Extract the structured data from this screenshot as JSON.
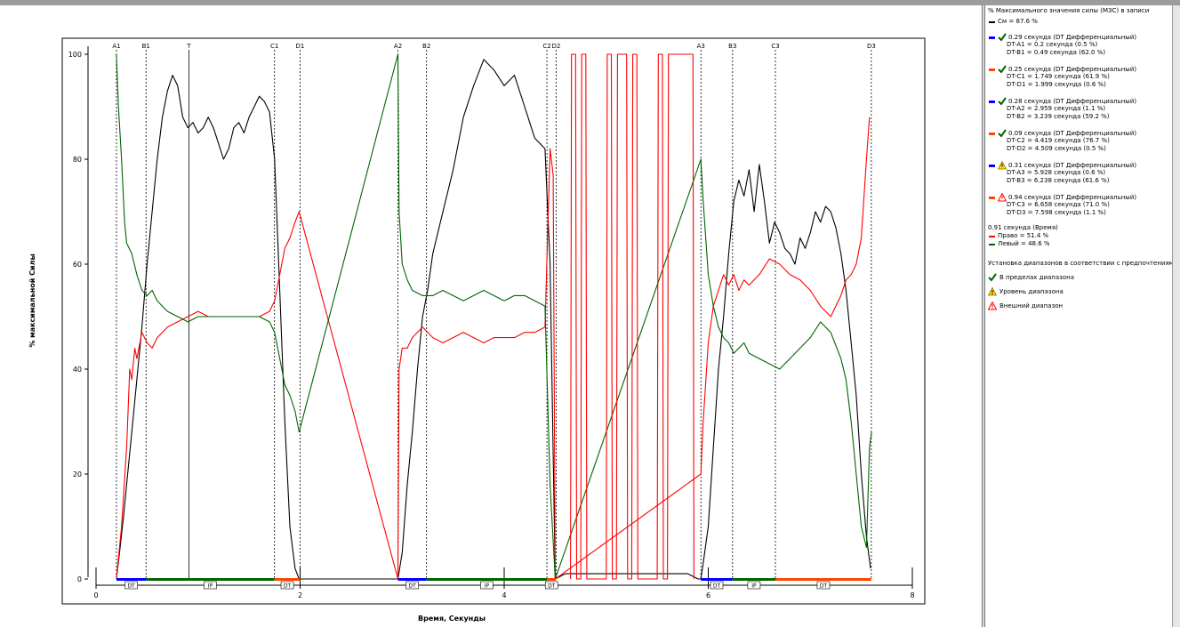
{
  "colors": {
    "force": "#000000",
    "right": "#ff0000",
    "left": "#006400",
    "dt_blue": "#0000ff",
    "dt_orange": "#ff4500",
    "ip_green": "#006400"
  },
  "chart_data": {
    "type": "line",
    "xlabel": "Время, Секунды",
    "ylabel": "% максимальной Силы",
    "xlim": [
      0,
      8
    ],
    "ylim": [
      0,
      100
    ],
    "x_ticks": [
      "0",
      "2",
      "4",
      "6",
      "8"
    ],
    "y_ticks": [
      "0",
      "20",
      "40",
      "60",
      "80",
      "100"
    ],
    "grid": false,
    "events": [
      {
        "label": "A1",
        "t": 0.2
      },
      {
        "label": "B1",
        "t": 0.49
      },
      {
        "label": "T",
        "t": 0.91
      },
      {
        "label": "C1",
        "t": 1.749
      },
      {
        "label": "D1",
        "t": 1.999
      },
      {
        "label": "A2",
        "t": 2.959
      },
      {
        "label": "B2",
        "t": 3.239
      },
      {
        "label": "C2",
        "t": 4.419
      },
      {
        "label": "D2",
        "t": 4.509
      },
      {
        "label": "A3",
        "t": 5.928
      },
      {
        "label": "B3",
        "t": 6.238
      },
      {
        "label": "C3",
        "t": 6.658
      },
      {
        "label": "D3",
        "t": 7.598
      }
    ],
    "phase_bars": [
      {
        "label": "DT",
        "start": 0.2,
        "end": 0.49,
        "color": "#0000ff"
      },
      {
        "label": "IP",
        "start": 0.49,
        "end": 1.749,
        "color": "#006400"
      },
      {
        "label": "DT",
        "start": 1.749,
        "end": 1.999,
        "color": "#ff4500"
      },
      {
        "label": "DT",
        "start": 2.959,
        "end": 3.239,
        "color": "#0000ff"
      },
      {
        "label": "IP",
        "start": 3.239,
        "end": 4.419,
        "color": "#006400"
      },
      {
        "label": "DT",
        "start": 4.419,
        "end": 4.509,
        "color": "#ff4500"
      },
      {
        "label": "DT",
        "start": 5.928,
        "end": 6.238,
        "color": "#0000ff"
      },
      {
        "label": "IP",
        "start": 6.238,
        "end": 6.658,
        "color": "#006400"
      },
      {
        "label": "DT",
        "start": 6.658,
        "end": 7.598,
        "color": "#ff4500"
      }
    ],
    "series": [
      {
        "color": "#000000",
        "x": [
          0.2,
          0.23,
          0.27,
          0.3,
          0.35,
          0.4,
          0.45,
          0.5,
          0.55,
          0.6,
          0.65,
          0.7,
          0.75,
          0.8,
          0.85,
          0.9,
          0.95,
          1.0,
          1.05,
          1.1,
          1.15,
          1.2,
          1.25,
          1.3,
          1.35,
          1.4,
          1.45,
          1.5,
          1.55,
          1.6,
          1.65,
          1.7,
          1.75,
          1.8,
          1.85,
          1.9,
          1.95,
          1.99,
          2.0,
          2.959,
          3.0,
          3.05,
          3.1,
          3.15,
          3.2,
          3.25,
          3.3,
          3.4,
          3.5,
          3.6,
          3.7,
          3.8,
          3.9,
          4.0,
          4.1,
          4.2,
          4.3,
          4.4,
          4.45,
          4.5,
          4.6,
          5.0,
          5.5,
          5.8,
          5.9,
          5.928,
          5.95,
          6.0,
          6.05,
          6.1,
          6.15,
          6.2,
          6.25,
          6.3,
          6.35,
          6.4,
          6.45,
          6.5,
          6.55,
          6.6,
          6.65,
          6.7,
          6.75,
          6.8,
          6.85,
          6.9,
          6.95,
          7.0,
          7.05,
          7.1,
          7.15,
          7.2,
          7.25,
          7.3,
          7.35,
          7.4,
          7.45,
          7.5,
          7.55,
          7.59
        ],
        "y": [
          0,
          5,
          12,
          18,
          28,
          38,
          48,
          60,
          70,
          80,
          88,
          93,
          96,
          94,
          88,
          86,
          87,
          85,
          86,
          88,
          86,
          83,
          80,
          82,
          86,
          87,
          85,
          88,
          90,
          92,
          91,
          89,
          80,
          55,
          30,
          10,
          2,
          0,
          0,
          0,
          5,
          18,
          28,
          40,
          50,
          55,
          62,
          70,
          78,
          88,
          94,
          99,
          97,
          94,
          96,
          90,
          84,
          82,
          60,
          0,
          1,
          1,
          1,
          1,
          0,
          0,
          3,
          10,
          25,
          40,
          50,
          62,
          72,
          76,
          73,
          78,
          70,
          79,
          72,
          64,
          68,
          66,
          63,
          62,
          60,
          65,
          63,
          66,
          70,
          68,
          71,
          70,
          67,
          62,
          55,
          45,
          35,
          20,
          8,
          2
        ],
        "x_note": "",
        "y_note": ""
      },
      {
        "color": "#ff0000",
        "x": [
          0.2,
          0.25,
          0.3,
          0.33,
          0.35,
          0.38,
          0.4,
          0.45,
          0.5,
          0.55,
          0.6,
          0.65,
          0.7,
          0.8,
          0.9,
          1.0,
          1.1,
          1.2,
          1.3,
          1.4,
          1.5,
          1.6,
          1.7,
          1.75,
          1.8,
          1.85,
          1.9,
          1.95,
          1.99,
          2.959,
          2.97,
          3.0,
          3.05,
          3.1,
          3.2,
          3.3,
          3.4,
          3.5,
          3.6,
          3.7,
          3.8,
          3.9,
          4.0,
          4.1,
          4.2,
          4.3,
          4.4,
          4.45,
          4.48,
          4.5,
          5.928,
          5.95,
          6.0,
          6.05,
          6.1,
          6.15,
          6.2,
          6.25,
          6.3,
          6.35,
          6.4,
          6.5,
          6.6,
          6.7,
          6.8,
          6.9,
          7.0,
          7.1,
          7.2,
          7.3,
          7.35,
          7.4,
          7.45,
          7.5,
          7.55,
          7.58
        ],
        "y": [
          0,
          10,
          25,
          40,
          38,
          44,
          42,
          47,
          45,
          44,
          46,
          47,
          48,
          49,
          50,
          51,
          50,
          50,
          50,
          50,
          50,
          50,
          51,
          53,
          58,
          63,
          65,
          68,
          70,
          0,
          40,
          44,
          44,
          46,
          48,
          46,
          45,
          46,
          47,
          46,
          45,
          46,
          46,
          46,
          47,
          47,
          48,
          82,
          77,
          0,
          20,
          30,
          45,
          52,
          55,
          58,
          56,
          58,
          55,
          57,
          56,
          58,
          61,
          60,
          58,
          57,
          55,
          52,
          50,
          54,
          57,
          58,
          60,
          65,
          80,
          88
        ]
      },
      {
        "color": "#006400",
        "x": [
          0.2,
          0.22,
          0.25,
          0.28,
          0.3,
          0.35,
          0.4,
          0.45,
          0.5,
          0.55,
          0.6,
          0.65,
          0.7,
          0.8,
          0.9,
          1.0,
          1.1,
          1.2,
          1.3,
          1.4,
          1.5,
          1.6,
          1.7,
          1.75,
          1.8,
          1.85,
          1.9,
          1.95,
          1.99,
          2.959,
          2.97,
          3.0,
          3.05,
          3.1,
          3.2,
          3.3,
          3.4,
          3.5,
          3.6,
          3.7,
          3.8,
          3.9,
          4.0,
          4.1,
          4.2,
          4.3,
          4.4,
          4.45,
          4.5,
          5.928,
          5.95,
          6.0,
          6.05,
          6.1,
          6.15,
          6.2,
          6.25,
          6.3,
          6.35,
          6.4,
          6.5,
          6.6,
          6.7,
          6.8,
          6.9,
          7.0,
          7.1,
          7.2,
          7.3,
          7.35,
          7.4,
          7.45,
          7.5,
          7.55,
          7.58,
          7.6
        ],
        "y": [
          100,
          90,
          80,
          68,
          64,
          62,
          58,
          55,
          54,
          55,
          53,
          52,
          51,
          50,
          49,
          50,
          50,
          50,
          50,
          50,
          50,
          50,
          49,
          47,
          42,
          37,
          35,
          32,
          28,
          100,
          70,
          60,
          57,
          55,
          54,
          54,
          55,
          54,
          53,
          54,
          55,
          54,
          53,
          54,
          54,
          53,
          52,
          18,
          0,
          80,
          72,
          58,
          52,
          48,
          46,
          45,
          43,
          44,
          45,
          43,
          42,
          41,
          40,
          42,
          44,
          46,
          49,
          47,
          42,
          38,
          30,
          20,
          10,
          6,
          25,
          28
        ]
      },
      {
        "color": "#ff0000",
        "x": [
          4.65,
          4.66,
          4.7,
          4.71,
          4.75,
          4.76,
          4.8,
          4.81,
          5.0,
          5.01,
          5.05,
          5.06,
          5.1,
          5.11,
          5.2,
          5.21,
          5.25,
          5.26,
          5.3,
          5.31,
          5.5,
          5.51,
          5.55,
          5.56,
          5.6,
          5.61,
          5.85,
          5.86
        ],
        "y": [
          0,
          100,
          100,
          0,
          0,
          100,
          100,
          0,
          0,
          100,
          100,
          0,
          0,
          100,
          100,
          0,
          0,
          100,
          100,
          0,
          0,
          100,
          100,
          0,
          0,
          100,
          100,
          0
        ]
      }
    ]
  },
  "legend": {
    "title": "% Максимального значения силы (МЗС) в записи",
    "force_line": "См = 87.6 %",
    "groups": [
      {
        "color": "#0000ff",
        "status": "check",
        "head": "0.29 секунда (DT Дифференциальный)",
        "l1": "DT-A1 = 0.2 секунда (0.5 %)",
        "l2": "DT-B1 = 0.49 секунда (62.0 %)"
      },
      {
        "color": "#ff4500",
        "status": "check",
        "head": "0.25 секунда (DT Дифференциальный)",
        "l1": "DT-C1 = 1.749 секунда (61.9 %)",
        "l2": "DT-D1 = 1.999 секунда (0.6 %)"
      },
      {
        "color": "#0000ff",
        "status": "check",
        "head": "0.28 секунда (DT Дифференциальный)",
        "l1": "DT-A2 = 2.959 секунда (1.1 %)",
        "l2": "DT-B2 = 3.239 секунда (59.2 %)"
      },
      {
        "color": "#ff4500",
        "status": "check",
        "head": "0.09 секунда (DT Дифференциальный)",
        "l1": "DT-C2 = 4.419 секунда (76.7 %)",
        "l2": "DT-D2 = 4.509 секунда (0.5 %)"
      },
      {
        "color": "#0000ff",
        "status": "warn",
        "head": "0.31 секунда (DT Дифференциальный)",
        "l1": "DT-A3 = 5.928 секунда (0.6 %)",
        "l2": "DT-B3 = 6.238 секунда (61.6 %)"
      },
      {
        "color": "#ff4500",
        "status": "out",
        "head": "0.94 секунда (DT Дифференциальный)",
        "l1": "DT-C3 = 6.658 секунда (71.0 %)",
        "l2": "DT-D3 = 7.598 секунда (1.1 %)"
      }
    ],
    "time_head": "0.91 секунда (Время)",
    "right_line": "Право = 51.4 %",
    "left_line": "Левый = 48.6 %",
    "ranges_title": "Установка диапазонов в соответствии с предпочтениями г",
    "in_range": "В пределах диапазона",
    "range_level": "Уровень диапазона",
    "out_range": "Внешний диапазон"
  }
}
